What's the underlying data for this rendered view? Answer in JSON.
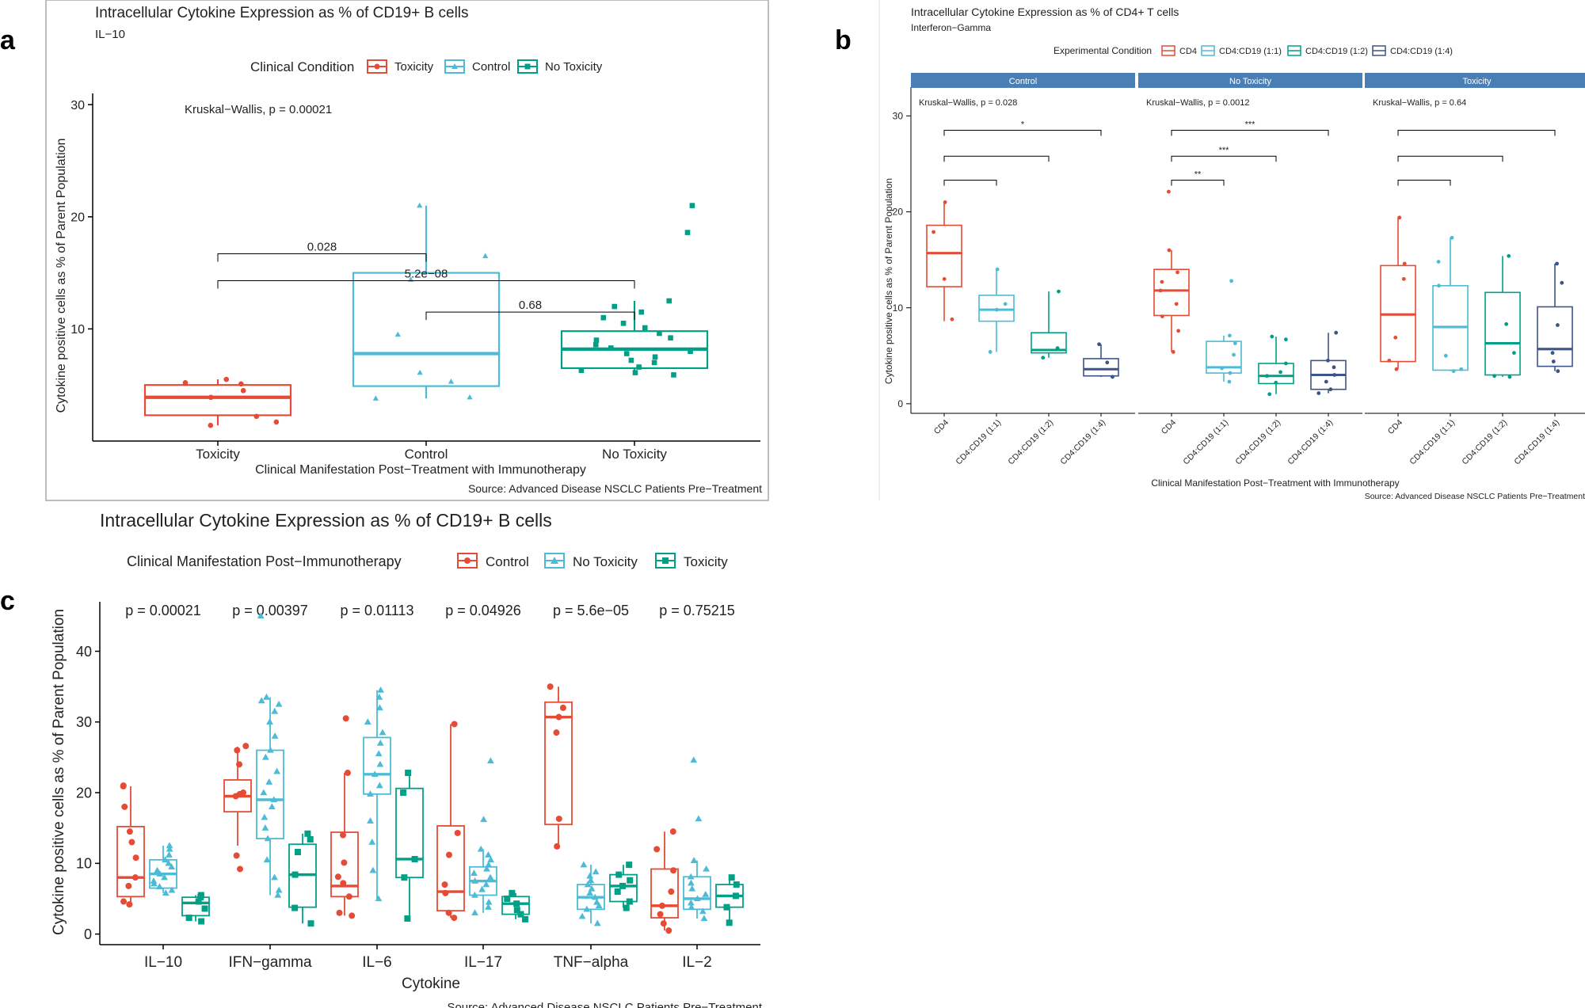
{
  "panel_letters": {
    "a": "a",
    "b": "b",
    "c": "c"
  },
  "colors": {
    "red": "#E64B35",
    "blue": "#4DBBD5",
    "teal": "#00A087",
    "navy": "#3C5488",
    "strip": "#4A7FB5"
  },
  "chart_data": [
    {
      "id": "a",
      "type": "boxplot",
      "title": "Intracellular Cytokine Expression as % of CD19+ B cells",
      "subtitle": "IL−10",
      "legend_title": "Clinical Condition",
      "legend": [
        "Toxicity",
        "Control",
        "No Toxicity"
      ],
      "xlabel": "Clinical Manifestation Post−Treatment with Immunotherapy",
      "ylabel": "Cytokine positive cells as % of Parent Population",
      "caption": "Source: Advanced Disease NSCLC Patients Pre−Treatment",
      "ylim": [
        0,
        31
      ],
      "yticks": [
        10,
        20,
        30
      ],
      "ytick_labels": [
        "10",
        "20",
        "30"
      ],
      "categories": [
        "Toxicity",
        "Control",
        "No Toxicity"
      ],
      "boxes": [
        {
          "group": "Toxicity",
          "q1": 2.3,
          "median": 3.9,
          "q3": 5.0,
          "wlo": 1.4,
          "whi": 5.5,
          "points": [
            1.4,
            1.7,
            2.2,
            3.9,
            4.5,
            5.1,
            5.2,
            5.5
          ]
        },
        {
          "group": "Control",
          "q1": 4.9,
          "median": 7.8,
          "q3": 15.0,
          "wlo": 3.8,
          "whi": 21.0,
          "points": [
            3.8,
            3.9,
            5.3,
            6.1,
            9.5,
            14.4,
            16.5,
            21.0
          ]
        },
        {
          "group": "No Toxicity",
          "q1": 6.5,
          "median": 8.2,
          "q3": 9.8,
          "wlo": 5.9,
          "whi": 12.5,
          "points": [
            5.9,
            6.1,
            6.3,
            6.6,
            7.0,
            7.2,
            7.5,
            7.8,
            8.0,
            8.3,
            8.6,
            9.0,
            9.2,
            9.6,
            10.1,
            10.5,
            11.0,
            11.5,
            12.0,
            12.5,
            18.6,
            21.0
          ]
        }
      ],
      "annotation": "Kruskal−Wallis, p = 0.00021",
      "brackets": [
        {
          "from": 0,
          "to": 1,
          "y": 16.7,
          "label": "0.028"
        },
        {
          "from": 0,
          "to": 2,
          "y": 14.3,
          "label": "5.2e−08"
        },
        {
          "from": 1,
          "to": 2,
          "y": 11.5,
          "label": "0.68"
        }
      ]
    },
    {
      "id": "b",
      "type": "boxplot",
      "title": "Intracellular Cytokine Expression as % of CD4+ T cells",
      "subtitle": "Interferon−Gamma",
      "legend_title": "Experimental Condition",
      "legend": [
        "CD4",
        "CD4:CD19 (1:1)",
        "CD4:CD19 (1:2)",
        "CD4:CD19 (1:4)"
      ],
      "xlabel": "Clinical Manifestation Post−Treatment with Immunotherapy",
      "ylabel": "Cytokine positive cells as % of Parent Population",
      "caption": "Source: Advanced Disease NSCLC Patients Pre−Treatment",
      "ylim": [
        -1,
        33
      ],
      "yticks": [
        0,
        10,
        20,
        30
      ],
      "ytick_labels": [
        "0",
        "10",
        "20",
        "30"
      ],
      "categories": [
        "CD4",
        "CD4:CD19 (1:1)",
        "CD4:CD19 (1:2)",
        "CD4:CD19 (1:4)"
      ],
      "facets": [
        {
          "name": "Control",
          "annotation": "Kruskal−Wallis, p = 0.028",
          "boxes": [
            {
              "q1": 12.2,
              "median": 15.7,
              "q3": 18.6,
              "wlo": 8.6,
              "whi": 21.0,
              "points": [
                8.8,
                13.0,
                17.9,
                21.0
              ]
            },
            {
              "q1": 8.6,
              "median": 9.8,
              "q3": 11.3,
              "wlo": 5.4,
              "whi": 14.0,
              "points": [
                5.4,
                9.8,
                10.4,
                14.0
              ]
            },
            {
              "q1": 5.3,
              "median": 5.6,
              "q3": 7.4,
              "wlo": 4.8,
              "whi": 11.7,
              "points": [
                4.8,
                5.8,
                11.7
              ]
            },
            {
              "q1": 2.9,
              "median": 3.6,
              "q3": 4.7,
              "wlo": 2.8,
              "whi": 6.2,
              "points": [
                2.8,
                4.3,
                6.2
              ]
            }
          ],
          "brackets": [
            {
              "from": 0,
              "to": 3,
              "y": 28.5,
              "label": "*"
            },
            {
              "from": 0,
              "to": 2,
              "y": 25.8,
              "label": ""
            },
            {
              "from": 0,
              "to": 1,
              "y": 23.3,
              "label": ""
            }
          ]
        },
        {
          "name": "No Toxicity",
          "annotation": "Kruskal−Wallis, p = 0.0012",
          "boxes": [
            {
              "q1": 9.2,
              "median": 11.8,
              "q3": 14.0,
              "wlo": 5.4,
              "whi": 16.0,
              "points": [
                5.4,
                7.6,
                9.1,
                10.4,
                11.8,
                12.7,
                13.7,
                16.0,
                22.1
              ]
            },
            {
              "q1": 3.2,
              "median": 3.8,
              "q3": 6.5,
              "wlo": 2.3,
              "whi": 7.1,
              "points": [
                2.3,
                3.2,
                3.7,
                5.1,
                6.3,
                7.1,
                12.8
              ]
            },
            {
              "q1": 2.1,
              "median": 2.9,
              "q3": 4.2,
              "wlo": 1.0,
              "whi": 7.0,
              "points": [
                1.0,
                2.2,
                2.9,
                3.3,
                4.2,
                6.7,
                7.0
              ]
            },
            {
              "q1": 1.5,
              "median": 3.0,
              "q3": 4.5,
              "wlo": 1.1,
              "whi": 7.4,
              "points": [
                1.1,
                1.5,
                2.3,
                3.0,
                3.8,
                4.5,
                7.4
              ]
            }
          ],
          "brackets": [
            {
              "from": 0,
              "to": 3,
              "y": 28.5,
              "label": "***"
            },
            {
              "from": 0,
              "to": 2,
              "y": 25.8,
              "label": "***"
            },
            {
              "from": 0,
              "to": 1,
              "y": 23.3,
              "label": "**"
            }
          ]
        },
        {
          "name": "Toxicity",
          "annotation": "Kruskal−Wallis, p = 0.64",
          "boxes": [
            {
              "q1": 4.4,
              "median": 9.3,
              "q3": 14.4,
              "wlo": 3.6,
              "whi": 19.4,
              "points": [
                3.6,
                4.5,
                6.9,
                13.0,
                14.6,
                19.4
              ]
            },
            {
              "q1": 3.5,
              "median": 8.0,
              "q3": 12.3,
              "wlo": 3.4,
              "whi": 17.3,
              "points": [
                3.4,
                3.6,
                5.0,
                12.3,
                14.8,
                17.3
              ]
            },
            {
              "q1": 3.0,
              "median": 6.3,
              "q3": 11.6,
              "wlo": 2.8,
              "whi": 15.4,
              "points": [
                2.8,
                2.9,
                5.3,
                8.3,
                15.4
              ]
            },
            {
              "q1": 3.9,
              "median": 5.7,
              "q3": 10.1,
              "wlo": 3.4,
              "whi": 14.6,
              "points": [
                3.4,
                4.4,
                5.3,
                8.2,
                12.6,
                14.6
              ]
            }
          ],
          "brackets": [
            {
              "from": 0,
              "to": 3,
              "y": 28.5,
              "label": ""
            },
            {
              "from": 0,
              "to": 2,
              "y": 25.8,
              "label": ""
            },
            {
              "from": 0,
              "to": 1,
              "y": 23.3,
              "label": ""
            }
          ]
        }
      ]
    },
    {
      "id": "c",
      "type": "boxplot",
      "title": "Intracellular Cytokine Expression as % of CD19+ B cells",
      "legend_title": "Clinical Manifestation Post−Immunotherapy",
      "legend": [
        "Control",
        "No Toxicity",
        "Toxicity"
      ],
      "xlabel": "Cytokine",
      "ylabel": "Cytokine positive cells as % of Parent Population",
      "caption": "Source: Advanced Disease NSCLC Patients Pre−Treatment",
      "ylim": [
        -1.5,
        47
      ],
      "yticks": [
        0,
        10,
        20,
        30,
        40
      ],
      "ytick_labels": [
        "0",
        "10",
        "20",
        "30",
        "40"
      ],
      "categories": [
        "IL−10",
        "IFN−gamma",
        "IL−6",
        "IL−17",
        "TNF−alpha",
        "IL−2"
      ],
      "pvalues": [
        "p = 0.00021",
        "p = 0.00397",
        "p = 0.01113",
        "p = 0.04926",
        "p = 5.6e−05",
        "p = 0.75215"
      ],
      "groups": [
        [
          {
            "q1": 5.3,
            "median": 8.0,
            "q3": 15.2,
            "wlo": 4.2,
            "whi": 20.9,
            "points": [
              4.2,
              4.6,
              6.8,
              8.0,
              10.8,
              13.0,
              14.5,
              18.0,
              20.9,
              21.0
            ]
          },
          {
            "q1": 6.5,
            "median": 8.5,
            "q3": 10.5,
            "wlo": 5.8,
            "whi": 12.5,
            "points": [
              5.8,
              6.2,
              6.7,
              7.1,
              7.5,
              8.0,
              8.5,
              9.0,
              9.5,
              10.0,
              10.5,
              11.2,
              12.0,
              12.5
            ]
          },
          {
            "q1": 2.6,
            "median": 4.4,
            "q3": 5.2,
            "wlo": 1.8,
            "whi": 5.5,
            "points": [
              1.8,
              2.3,
              3.6,
              4.6,
              5.2,
              5.5
            ]
          }
        ],
        [
          {
            "q1": 17.3,
            "median": 19.5,
            "q3": 21.8,
            "wlo": 12.5,
            "whi": 26.5,
            "points": [
              9.2,
              11.1,
              19.5,
              19.8,
              20.0,
              24.0,
              26.0,
              26.6
            ]
          },
          {
            "q1": 13.5,
            "median": 19.0,
            "q3": 26.0,
            "wlo": 5.5,
            "whi": 33.5,
            "points": [
              5.5,
              6.2,
              8.0,
              10.5,
              13.5,
              15.0,
              16.5,
              18.0,
              19.0,
              20.0,
              21.5,
              23.0,
              25.0,
              26.0,
              28.0,
              30.0,
              31.5,
              32.5,
              33.0,
              33.5,
              45.0
            ]
          },
          {
            "q1": 3.8,
            "median": 8.4,
            "q3": 12.7,
            "wlo": 1.5,
            "whi": 14.2,
            "points": [
              1.5,
              3.7,
              8.4,
              11.6,
              13.4,
              14.2
            ]
          }
        ],
        [
          {
            "q1": 5.3,
            "median": 6.8,
            "q3": 14.4,
            "wlo": 2.6,
            "whi": 22.8,
            "points": [
              2.6,
              3.0,
              5.3,
              7.2,
              8.1,
              10.1,
              14.0,
              22.8,
              30.5
            ]
          },
          {
            "q1": 19.8,
            "median": 22.6,
            "q3": 27.8,
            "wlo": 5.0,
            "whi": 34.5,
            "points": [
              5.0,
              9.0,
              13.0,
              16.0,
              19.8,
              21.0,
              22.6,
              24.0,
              25.5,
              27.0,
              28.5,
              30.0,
              32.0,
              33.5,
              34.5
            ]
          },
          {
            "q1": 8.0,
            "median": 10.6,
            "q3": 20.6,
            "wlo": 2.2,
            "whi": 22.8,
            "points": [
              2.2,
              8.0,
              10.6,
              20.0,
              22.8
            ]
          }
        ],
        [
          {
            "q1": 3.3,
            "median": 6.0,
            "q3": 15.3,
            "wlo": 2.3,
            "whi": 29.7,
            "points": [
              2.3,
              3.0,
              5.8,
              7.0,
              11.2,
              14.3,
              29.7
            ]
          },
          {
            "q1": 5.5,
            "median": 7.5,
            "q3": 9.5,
            "wlo": 3.0,
            "whi": 12.0,
            "points": [
              3.0,
              3.8,
              4.5,
              5.5,
              6.3,
              7.0,
              7.5,
              8.0,
              8.6,
              9.2,
              9.8,
              10.5,
              11.2,
              12.0,
              16.2,
              24.5
            ]
          },
          {
            "q1": 2.8,
            "median": 4.3,
            "q3": 5.3,
            "wlo": 2.1,
            "whi": 5.8,
            "points": [
              2.1,
              2.8,
              3.4,
              4.3,
              5.0,
              5.8
            ]
          }
        ],
        [
          {
            "q1": 15.5,
            "median": 30.7,
            "q3": 32.8,
            "wlo": 12.4,
            "whi": 35.0,
            "points": [
              12.4,
              16.3,
              28.5,
              30.7,
              32.0,
              35.0
            ]
          },
          {
            "q1": 3.5,
            "median": 5.2,
            "q3": 7.0,
            "wlo": 1.5,
            "whi": 9.8,
            "points": [
              1.5,
              2.5,
              3.5,
              4.0,
              4.5,
              5.2,
              5.8,
              6.4,
              7.0,
              7.6,
              8.2,
              8.8,
              9.8
            ]
          },
          {
            "q1": 4.6,
            "median": 6.8,
            "q3": 8.4,
            "wlo": 3.7,
            "whi": 9.8,
            "points": [
              3.7,
              4.6,
              6.0,
              6.8,
              7.6,
              8.4,
              9.8
            ]
          }
        ],
        [
          {
            "q1": 2.3,
            "median": 4.0,
            "q3": 9.2,
            "wlo": 0.5,
            "whi": 14.5,
            "points": [
              0.5,
              1.5,
              2.8,
              4.0,
              6.0,
              9.0,
              12.0,
              14.5
            ]
          },
          {
            "q1": 3.5,
            "median": 5.0,
            "q3": 8.1,
            "wlo": 2.2,
            "whi": 10.4,
            "points": [
              2.2,
              3.2,
              3.8,
              4.4,
              5.0,
              5.6,
              6.4,
              7.2,
              8.1,
              9.2,
              10.4,
              16.3,
              24.6
            ]
          },
          {
            "q1": 3.8,
            "median": 5.4,
            "q3": 7.0,
            "wlo": 1.6,
            "whi": 8.0,
            "points": [
              1.6,
              3.8,
              5.4,
              7.0,
              8.0
            ]
          }
        ]
      ]
    }
  ]
}
